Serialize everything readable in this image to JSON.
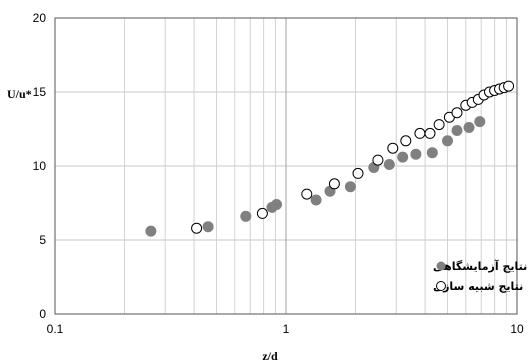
{
  "chart_data": {
    "type": "scatter",
    "xscale": "log",
    "xlim": [
      0.1,
      10
    ],
    "ylim": [
      0,
      20
    ],
    "xticks": [
      0.1,
      1,
      10
    ],
    "xtick_labels": [
      "0.1",
      "1",
      "10"
    ],
    "yticks": [
      0,
      5,
      10,
      15,
      20
    ],
    "ytick_labels": [
      "0",
      "5",
      "10",
      "15",
      "20"
    ],
    "xlabel": "z/d",
    "ylabel": "U/u*",
    "grid": true,
    "legend_position": "bottom-right",
    "series": [
      {
        "name": "نتایج آزمایشگاهی",
        "marker": "filled-circle",
        "color": "#808080",
        "points": [
          [
            0.26,
            5.6
          ],
          [
            0.46,
            5.9
          ],
          [
            0.67,
            6.6
          ],
          [
            0.87,
            7.2
          ],
          [
            0.91,
            7.4
          ],
          [
            1.35,
            7.7
          ],
          [
            1.55,
            8.3
          ],
          [
            1.9,
            8.6
          ],
          [
            2.4,
            9.9
          ],
          [
            2.8,
            10.1
          ],
          [
            3.2,
            10.6
          ],
          [
            3.65,
            10.8
          ],
          [
            4.3,
            10.9
          ],
          [
            5.0,
            11.7
          ],
          [
            5.5,
            12.4
          ],
          [
            6.2,
            12.6
          ],
          [
            6.9,
            13.0
          ]
        ]
      },
      {
        "name": "نتایج شبیه سازی",
        "marker": "open-circle",
        "color": "#000000",
        "points": [
          [
            0.41,
            5.8
          ],
          [
            0.79,
            6.8
          ],
          [
            1.23,
            8.1
          ],
          [
            1.62,
            8.8
          ],
          [
            2.05,
            9.5
          ],
          [
            2.5,
            10.4
          ],
          [
            2.9,
            11.2
          ],
          [
            3.3,
            11.7
          ],
          [
            3.8,
            12.2
          ],
          [
            4.2,
            12.2
          ],
          [
            4.6,
            12.8
          ],
          [
            5.1,
            13.3
          ],
          [
            5.5,
            13.6
          ],
          [
            6.0,
            14.1
          ],
          [
            6.4,
            14.3
          ],
          [
            6.8,
            14.5
          ],
          [
            7.2,
            14.8
          ],
          [
            7.6,
            15.0
          ],
          [
            8.0,
            15.1
          ],
          [
            8.4,
            15.2
          ],
          [
            8.8,
            15.3
          ],
          [
            9.2,
            15.4
          ]
        ]
      }
    ]
  }
}
